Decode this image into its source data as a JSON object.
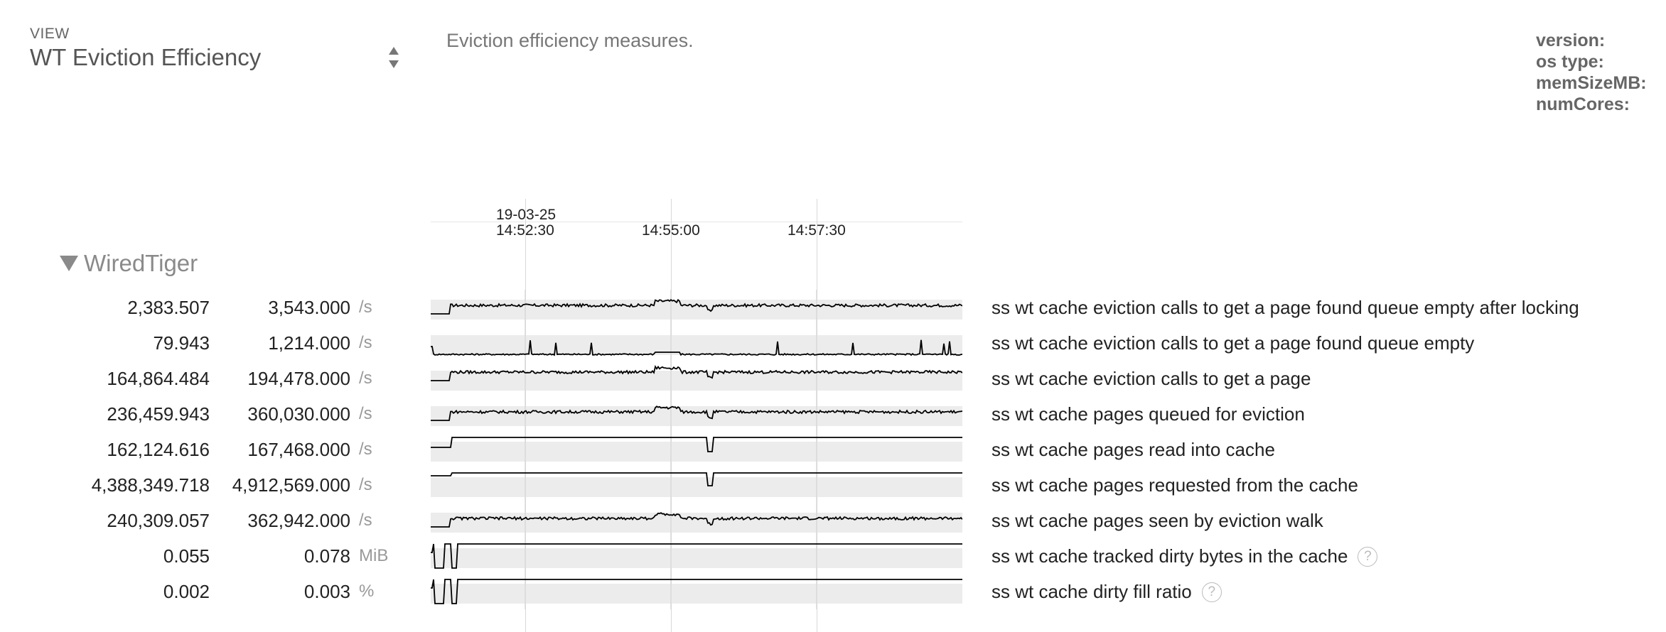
{
  "view": {
    "label": "VIEW",
    "selected": "WT Eviction Efficiency",
    "description": "Eviction efficiency measures."
  },
  "meta": {
    "version_label": "version:",
    "os_type_label": "os type:",
    "mem_size_label": "memSizeMB:",
    "num_cores_label": "numCores:"
  },
  "timeline": {
    "date_label": "19-03-25",
    "ticks": [
      "14:52:30",
      "14:55:00",
      "14:57:30"
    ]
  },
  "group": {
    "name": "WiredTiger",
    "expanded": true
  },
  "colors": {
    "spark_band": "#ececec",
    "spark_line": "#000000",
    "grid": "#d8d8d8"
  },
  "rows": [
    {
      "avg": "2,383.507",
      "max": "3,543.000",
      "unit": "/s",
      "metric": "ss wt cache eviction calls to get a page found queue empty after locking",
      "help": false,
      "shape": "noisy"
    },
    {
      "avg": "79.943",
      "max": "1,214.000",
      "unit": "/s",
      "metric": "ss wt cache eviction calls to get a page found queue empty",
      "help": false,
      "shape": "spiky"
    },
    {
      "avg": "164,864.484",
      "max": "194,478.000",
      "unit": "/s",
      "metric": "ss wt cache eviction calls to get a page",
      "help": false,
      "shape": "noisy-high"
    },
    {
      "avg": "236,459.943",
      "max": "360,030.000",
      "unit": "/s",
      "metric": "ss wt cache pages queued for eviction",
      "help": false,
      "shape": "noisy"
    },
    {
      "avg": "162,124.616",
      "max": "167,468.000",
      "unit": "/s",
      "metric": "ss wt cache pages read into cache",
      "help": false,
      "shape": "flat-dip"
    },
    {
      "avg": "4,388,349.718",
      "max": "4,912,569.000",
      "unit": "/s",
      "metric": "ss wt cache pages requested from the cache",
      "help": false,
      "shape": "flat-dip2"
    },
    {
      "avg": "240,309.057",
      "max": "362,942.000",
      "unit": "/s",
      "metric": "ss wt cache pages seen by eviction walk",
      "help": false,
      "shape": "noisy"
    },
    {
      "avg": "0.055",
      "max": "0.078",
      "unit": "MiB",
      "metric": "ss wt cache tracked dirty bytes in the cache",
      "help": true,
      "shape": "square"
    },
    {
      "avg": "0.002",
      "max": "0.003",
      "unit": "%",
      "metric": "ss wt cache dirty fill ratio",
      "help": true,
      "shape": "square"
    }
  ]
}
